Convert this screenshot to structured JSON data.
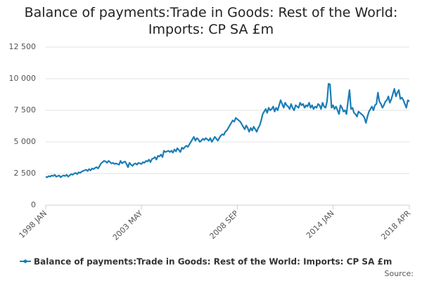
{
  "chart_data": {
    "type": "line",
    "title": "Balance of payments:Trade in Goods: Rest of the World: Imports: CP SA £m",
    "source": "Source:",
    "categories": [
      "1998 JAN",
      null,
      null,
      null,
      null,
      null,
      null,
      null,
      null,
      null,
      null,
      null,
      null,
      null,
      null,
      null,
      null,
      null,
      null,
      null,
      null,
      null,
      null,
      null,
      null,
      null,
      null,
      null,
      null,
      null,
      null,
      null,
      null,
      null,
      null,
      null,
      null,
      null,
      null,
      null,
      null,
      null,
      null,
      null,
      null,
      null,
      null,
      null,
      null,
      null,
      null,
      null,
      null,
      null,
      null,
      null,
      null,
      null,
      null,
      null,
      null,
      null,
      null,
      null,
      "2003 MAY",
      null,
      null,
      null,
      null,
      null,
      null,
      null,
      null,
      null,
      null,
      null,
      null,
      null,
      null,
      null,
      null,
      null,
      null,
      null,
      null,
      null,
      null,
      null,
      null,
      null,
      null,
      null,
      null,
      null,
      null,
      null,
      null,
      null,
      null,
      null,
      null,
      null,
      null,
      null,
      null,
      null,
      null,
      null,
      null,
      null,
      null,
      null,
      null,
      null,
      null,
      null,
      null,
      null,
      null,
      null,
      null,
      null,
      null,
      null,
      null,
      null,
      null,
      null,
      "2008 SEP",
      null,
      null,
      null,
      null,
      null,
      null,
      null,
      null,
      null,
      null,
      null,
      null,
      null,
      null,
      null,
      null,
      null,
      null,
      null,
      null,
      null,
      null,
      null,
      null,
      null,
      null,
      null,
      null,
      null,
      null,
      null,
      null,
      null,
      null,
      null,
      null,
      null,
      null,
      null,
      null,
      null,
      null,
      null,
      null,
      null,
      null,
      null,
      null,
      null,
      null,
      null,
      null,
      null,
      null,
      null,
      null,
      null,
      null,
      null,
      null,
      null,
      null,
      null,
      "2014 JAN",
      null,
      null,
      null,
      null,
      null,
      null,
      null,
      null,
      null,
      null,
      null,
      null,
      null,
      null,
      null,
      null,
      null,
      null,
      null,
      null,
      null,
      null,
      null,
      null,
      null,
      null,
      null,
      null,
      null,
      null,
      null,
      null,
      null,
      null,
      null,
      null,
      null,
      null,
      null,
      null,
      null,
      null,
      null,
      null,
      null,
      null,
      null,
      null,
      null,
      null,
      "2018 APR"
    ],
    "series": [
      {
        "name": "Balance of payments:Trade in Goods: Rest of the World: Imports: CP SA £m",
        "color": "#1a7db6",
        "values": [
          2250,
          2200,
          2300,
          2250,
          2350,
          2300,
          2400,
          2250,
          2300,
          2350,
          2200,
          2300,
          2350,
          2300,
          2400,
          2250,
          2350,
          2450,
          2400,
          2500,
          2550,
          2450,
          2600,
          2550,
          2650,
          2700,
          2750,
          2800,
          2700,
          2850,
          2750,
          2900,
          2850,
          2950,
          3000,
          2900,
          3100,
          3300,
          3400,
          3500,
          3450,
          3350,
          3500,
          3400,
          3300,
          3350,
          3250,
          3300,
          3250,
          3200,
          3500,
          3300,
          3400,
          3450,
          3250,
          3000,
          3350,
          3200,
          3100,
          3250,
          3300,
          3200,
          3350,
          3300,
          3250,
          3400,
          3350,
          3500,
          3450,
          3600,
          3400,
          3650,
          3700,
          3800,
          3600,
          3900,
          3850,
          4000,
          3800,
          4300,
          4200,
          4250,
          4300,
          4200,
          4300,
          4150,
          4400,
          4250,
          4500,
          4350,
          4200,
          4550,
          4450,
          4600,
          4700,
          4600,
          4800,
          5000,
          5200,
          5400,
          5100,
          5300,
          5200,
          5000,
          5100,
          5250,
          5150,
          5300,
          5200,
          5100,
          5300,
          5000,
          5200,
          5400,
          5250,
          5100,
          5300,
          5500,
          5600,
          5550,
          5800,
          5900,
          6100,
          6300,
          6500,
          6700,
          6600,
          6900,
          6800,
          6700,
          6600,
          6400,
          6200,
          6000,
          6300,
          6100,
          5800,
          6100,
          5900,
          6200,
          6000,
          5800,
          6100,
          6300,
          6700,
          7200,
          7400,
          7600,
          7300,
          7700,
          7500,
          7600,
          7800,
          7400,
          7700,
          7500,
          7900,
          8300,
          8000,
          7700,
          8100,
          7900,
          7800,
          7600,
          8000,
          7700,
          7500,
          7900,
          7800,
          7700,
          8100,
          7900,
          8000,
          7700,
          7900,
          7800,
          8100,
          7700,
          7900,
          7600,
          7800,
          7700,
          8000,
          7900,
          7600,
          8100,
          7800,
          7700,
          8200,
          9600,
          9550,
          7700,
          7900,
          7600,
          7800,
          7500,
          7200,
          7900,
          7700,
          7400,
          7500,
          7200,
          8200,
          9100,
          7600,
          7700,
          7300,
          7200,
          7000,
          7400,
          7300,
          7200,
          7100,
          6900,
          6500,
          7000,
          7400,
          7600,
          7800,
          7500,
          7900,
          8000,
          8900,
          8200,
          8000,
          7700,
          7900,
          8200,
          8300,
          8600,
          8100,
          8400,
          8800,
          9200,
          8600,
          8900,
          9100,
          8400,
          8500,
          8300,
          8000,
          7700,
          8300,
          8200
        ]
      }
    ],
    "ylim": [
      0,
      12500
    ],
    "yticks": [
      0,
      {
        "value": 2500,
        "label": "2 500"
      },
      {
        "value": 5000,
        "label": "5 000"
      },
      {
        "value": 7500,
        "label": "7 500"
      },
      {
        "value": 10000,
        "label": "10 000"
      },
      {
        "value": 12500,
        "label": "12 500"
      }
    ],
    "grid": true,
    "legend": "bottom"
  }
}
